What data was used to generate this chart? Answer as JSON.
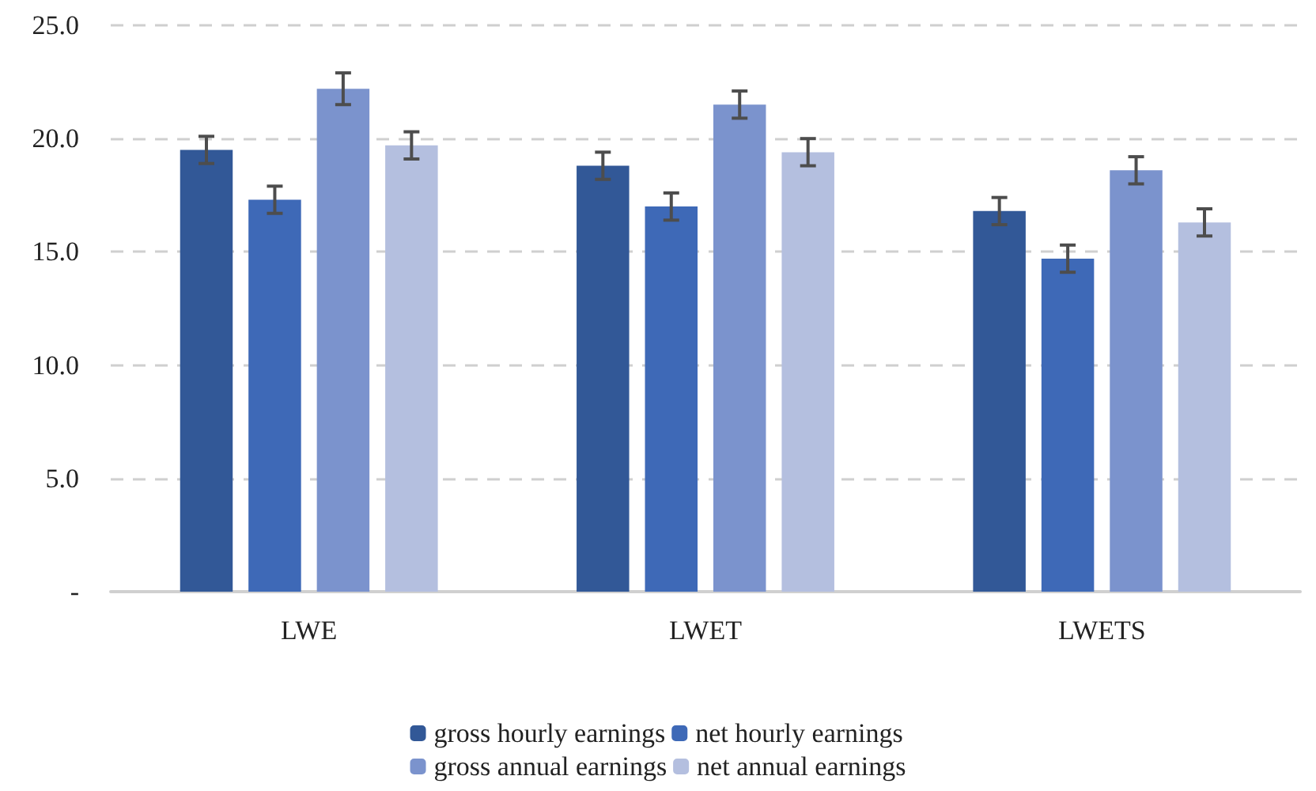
{
  "chart_data": {
    "type": "bar",
    "categories": [
      "LWE",
      "LWET",
      "LWETS"
    ],
    "series": [
      {
        "name": "gross hourly earnings",
        "color": "#325897",
        "values": [
          19.5,
          18.8,
          16.8
        ],
        "errors": [
          0.6,
          0.6,
          0.6
        ]
      },
      {
        "name": "net hourly earnings",
        "color": "#3e69b7",
        "values": [
          17.3,
          17.0,
          14.7
        ],
        "errors": [
          0.6,
          0.6,
          0.6
        ]
      },
      {
        "name": "gross annual earnings",
        "color": "#7b93cd",
        "values": [
          22.2,
          21.5,
          18.6
        ],
        "errors": [
          0.7,
          0.6,
          0.6
        ]
      },
      {
        "name": "net annual earnings",
        "color": "#b4bfdf",
        "values": [
          19.7,
          19.4,
          16.3
        ],
        "errors": [
          0.6,
          0.6,
          0.6
        ]
      }
    ],
    "ylim": [
      0,
      25
    ],
    "yticks": [
      {
        "value": 0,
        "label": "-"
      },
      {
        "value": 5,
        "label": "5.0"
      },
      {
        "value": 10,
        "label": "10.0"
      },
      {
        "value": 15,
        "label": "15.0"
      },
      {
        "value": 20,
        "label": "20.0"
      },
      {
        "value": 25,
        "label": "25.0"
      }
    ],
    "grid": "y",
    "legend": "bottom"
  }
}
